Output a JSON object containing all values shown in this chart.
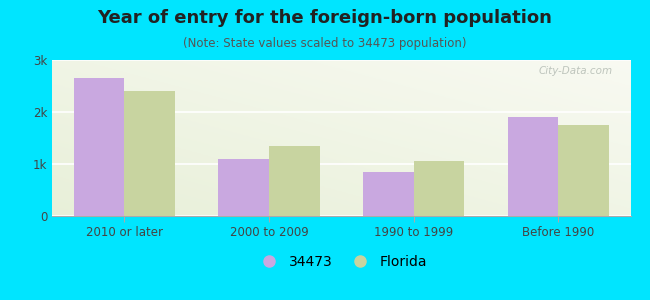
{
  "title": "Year of entry for the foreign-born population",
  "subtitle": "(Note: State values scaled to 34473 population)",
  "categories": [
    "2010 or later",
    "2000 to 2009",
    "1990 to 1999",
    "Before 1990"
  ],
  "values_34473": [
    2650,
    1100,
    850,
    1900
  ],
  "values_florida": [
    2400,
    1350,
    1050,
    1750
  ],
  "color_34473": "#c9a8e0",
  "color_florida": "#c8d4a0",
  "background_outer": "#00e5ff",
  "ylim": [
    0,
    3000
  ],
  "yticks": [
    0,
    1000,
    2000,
    3000
  ],
  "ytick_labels": [
    "0",
    "1k",
    "2k",
    "3k"
  ],
  "bar_width": 0.35,
  "legend_label_34473": "34473",
  "legend_label_florida": "Florida",
  "title_fontsize": 13,
  "subtitle_fontsize": 8.5,
  "tick_fontsize": 8.5,
  "legend_fontsize": 10
}
